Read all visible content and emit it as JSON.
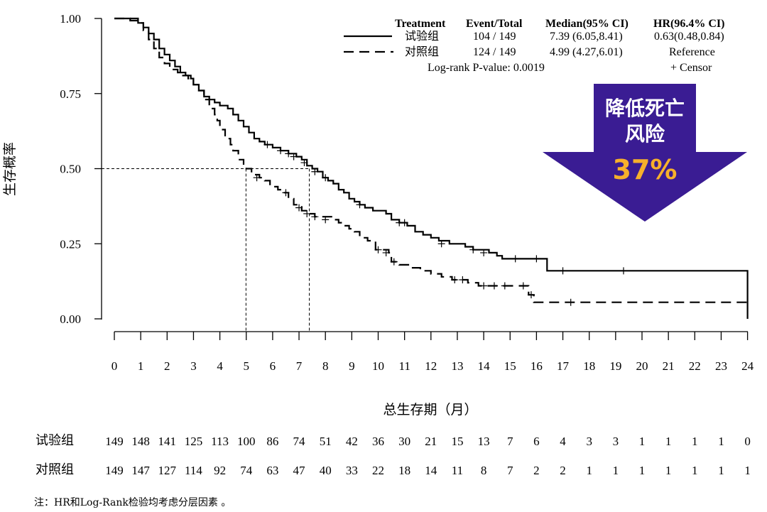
{
  "chart_data": {
    "type": "line",
    "subtype": "kaplan-meier",
    "xlabel": "总生存期（月）",
    "ylabel": "生存概率",
    "xlim": [
      0,
      24
    ],
    "ylim": [
      0,
      1
    ],
    "x_ticks": [
      "0",
      "1",
      "2",
      "3",
      "4",
      "5",
      "6",
      "7",
      "8",
      "9",
      "10",
      "11",
      "12",
      "13",
      "14",
      "15",
      "16",
      "17",
      "18",
      "19",
      "20",
      "21",
      "22",
      "23",
      "24"
    ],
    "y_ticks": [
      "0.00",
      "0.25",
      "0.50",
      "0.75",
      "1.00"
    ],
    "grid": false,
    "legend_position": "top-right",
    "legend": {
      "headers": {
        "treatment": "Treatment",
        "event_total": "Event/Total",
        "median": "Median(95% CI)",
        "hr": "HR(96.4% CI)"
      },
      "rows": [
        {
          "name": "试验组",
          "event_total": "104 / 149",
          "median": "7.39 (6.05,8.41)",
          "hr": "0.63(0.48,0.84)",
          "style": "solid"
        },
        {
          "name": "对照组",
          "event_total": "124 / 149",
          "median": "4.99 (4.27,6.01)",
          "hr": "Reference",
          "style": "dashed"
        }
      ],
      "logrank": "Log-rank P-value: 0.0019",
      "censor": "+  Censor"
    },
    "medians": [
      7.39,
      4.99
    ],
    "median_level": 0.5,
    "series": [
      {
        "name": "试验组",
        "style": "solid",
        "color": "#000000",
        "steps": [
          [
            0,
            1.0
          ],
          [
            0.6,
            0.993
          ],
          [
            0.9,
            0.985
          ],
          [
            1.1,
            0.97
          ],
          [
            1.3,
            0.95
          ],
          [
            1.5,
            0.93
          ],
          [
            1.7,
            0.9
          ],
          [
            1.9,
            0.88
          ],
          [
            2.1,
            0.86
          ],
          [
            2.3,
            0.84
          ],
          [
            2.5,
            0.82
          ],
          [
            2.7,
            0.81
          ],
          [
            2.9,
            0.8
          ],
          [
            3.0,
            0.78
          ],
          [
            3.2,
            0.76
          ],
          [
            3.4,
            0.74
          ],
          [
            3.6,
            0.73
          ],
          [
            3.8,
            0.72
          ],
          [
            4.0,
            0.71
          ],
          [
            4.3,
            0.7
          ],
          [
            4.5,
            0.68
          ],
          [
            4.7,
            0.66
          ],
          [
            4.9,
            0.64
          ],
          [
            5.1,
            0.62
          ],
          [
            5.3,
            0.6
          ],
          [
            5.5,
            0.59
          ],
          [
            5.7,
            0.58
          ],
          [
            6.0,
            0.57
          ],
          [
            6.3,
            0.56
          ],
          [
            6.6,
            0.55
          ],
          [
            6.9,
            0.54
          ],
          [
            7.1,
            0.53
          ],
          [
            7.3,
            0.51
          ],
          [
            7.5,
            0.5
          ],
          [
            7.7,
            0.49
          ],
          [
            7.9,
            0.47
          ],
          [
            8.1,
            0.46
          ],
          [
            8.3,
            0.45
          ],
          [
            8.5,
            0.43
          ],
          [
            8.7,
            0.42
          ],
          [
            8.9,
            0.4
          ],
          [
            9.1,
            0.39
          ],
          [
            9.3,
            0.38
          ],
          [
            9.5,
            0.37
          ],
          [
            9.8,
            0.36
          ],
          [
            10.3,
            0.35
          ],
          [
            10.5,
            0.33
          ],
          [
            10.8,
            0.32
          ],
          [
            11.1,
            0.31
          ],
          [
            11.4,
            0.29
          ],
          [
            11.7,
            0.28
          ],
          [
            12.0,
            0.27
          ],
          [
            12.3,
            0.26
          ],
          [
            12.7,
            0.25
          ],
          [
            13.3,
            0.24
          ],
          [
            13.6,
            0.23
          ],
          [
            14.2,
            0.22
          ],
          [
            14.5,
            0.21
          ],
          [
            14.7,
            0.2
          ],
          [
            16.4,
            0.16
          ],
          [
            24.0,
            0.0
          ]
        ],
        "censors": [
          [
            5.8,
            0.58
          ],
          [
            6.3,
            0.56
          ],
          [
            6.6,
            0.55
          ],
          [
            6.8,
            0.54
          ],
          [
            7.2,
            0.52
          ],
          [
            7.6,
            0.49
          ],
          [
            8.0,
            0.47
          ],
          [
            9.3,
            0.38
          ],
          [
            10.8,
            0.32
          ],
          [
            11.0,
            0.32
          ],
          [
            12.4,
            0.25
          ],
          [
            13.6,
            0.23
          ],
          [
            14.0,
            0.22
          ],
          [
            15.2,
            0.2
          ],
          [
            16.0,
            0.2
          ],
          [
            17.0,
            0.16
          ],
          [
            19.3,
            0.16
          ]
        ]
      },
      {
        "name": "对照组",
        "style": "dashed",
        "color": "#000000",
        "steps": [
          [
            0,
            1.0
          ],
          [
            0.9,
            0.985
          ],
          [
            1.1,
            0.96
          ],
          [
            1.3,
            0.93
          ],
          [
            1.5,
            0.9
          ],
          [
            1.7,
            0.87
          ],
          [
            1.9,
            0.85
          ],
          [
            2.1,
            0.83
          ],
          [
            2.4,
            0.82
          ],
          [
            2.6,
            0.81
          ],
          [
            2.8,
            0.8
          ],
          [
            3.0,
            0.78
          ],
          [
            3.2,
            0.76
          ],
          [
            3.4,
            0.73
          ],
          [
            3.6,
            0.7
          ],
          [
            3.8,
            0.68
          ],
          [
            3.9,
            0.66
          ],
          [
            4.0,
            0.63
          ],
          [
            4.2,
            0.6
          ],
          [
            4.4,
            0.58
          ],
          [
            4.5,
            0.56
          ],
          [
            4.7,
            0.53
          ],
          [
            4.9,
            0.51
          ],
          [
            5.0,
            0.5
          ],
          [
            5.2,
            0.48
          ],
          [
            5.5,
            0.47
          ],
          [
            5.7,
            0.46
          ],
          [
            5.9,
            0.44
          ],
          [
            6.2,
            0.43
          ],
          [
            6.4,
            0.42
          ],
          [
            6.6,
            0.4
          ],
          [
            6.8,
            0.38
          ],
          [
            7.1,
            0.36
          ],
          [
            7.4,
            0.35
          ],
          [
            7.6,
            0.34
          ],
          [
            8.3,
            0.33
          ],
          [
            8.5,
            0.32
          ],
          [
            8.7,
            0.31
          ],
          [
            8.9,
            0.3
          ],
          [
            9.1,
            0.29
          ],
          [
            9.3,
            0.27
          ],
          [
            9.6,
            0.26
          ],
          [
            9.9,
            0.23
          ],
          [
            10.4,
            0.22
          ],
          [
            10.5,
            0.19
          ],
          [
            10.8,
            0.18
          ],
          [
            11.2,
            0.17
          ],
          [
            11.6,
            0.16
          ],
          [
            12.0,
            0.15
          ],
          [
            12.4,
            0.14
          ],
          [
            12.8,
            0.13
          ],
          [
            13.4,
            0.12
          ],
          [
            13.8,
            0.11
          ],
          [
            15.7,
            0.08
          ],
          [
            15.9,
            0.055
          ],
          [
            24.0,
            0.055
          ]
        ],
        "censors": [
          [
            5.4,
            0.47
          ],
          [
            6.5,
            0.42
          ],
          [
            7.0,
            0.37
          ],
          [
            7.3,
            0.35
          ],
          [
            7.6,
            0.34
          ],
          [
            8.0,
            0.33
          ],
          [
            10.0,
            0.23
          ],
          [
            10.3,
            0.22
          ],
          [
            10.6,
            0.19
          ],
          [
            12.9,
            0.13
          ],
          [
            13.2,
            0.13
          ],
          [
            14.0,
            0.11
          ],
          [
            14.4,
            0.11
          ],
          [
            14.8,
            0.11
          ],
          [
            15.5,
            0.11
          ],
          [
            15.8,
            0.08
          ],
          [
            17.3,
            0.055
          ]
        ]
      }
    ],
    "at_risk": {
      "rows": [
        {
          "label": "试验组",
          "values": [
            149,
            148,
            141,
            125,
            113,
            100,
            86,
            74,
            51,
            42,
            36,
            30,
            21,
            15,
            13,
            7,
            6,
            4,
            3,
            3,
            1,
            1,
            1,
            1,
            0
          ]
        },
        {
          "label": "对照组",
          "values": [
            149,
            147,
            127,
            114,
            92,
            74,
            63,
            47,
            40,
            33,
            22,
            18,
            14,
            11,
            8,
            7,
            2,
            2,
            1,
            1,
            1,
            1,
            1,
            1,
            1
          ]
        }
      ]
    },
    "annotation": {
      "line1": "降低死亡",
      "line2": "风险",
      "percent": "37%",
      "fill_color": "#3a1c93",
      "percent_color": "#f7b02b"
    },
    "footnote": "注：HR和Log-Rank检验均考虑分层因素 。"
  }
}
